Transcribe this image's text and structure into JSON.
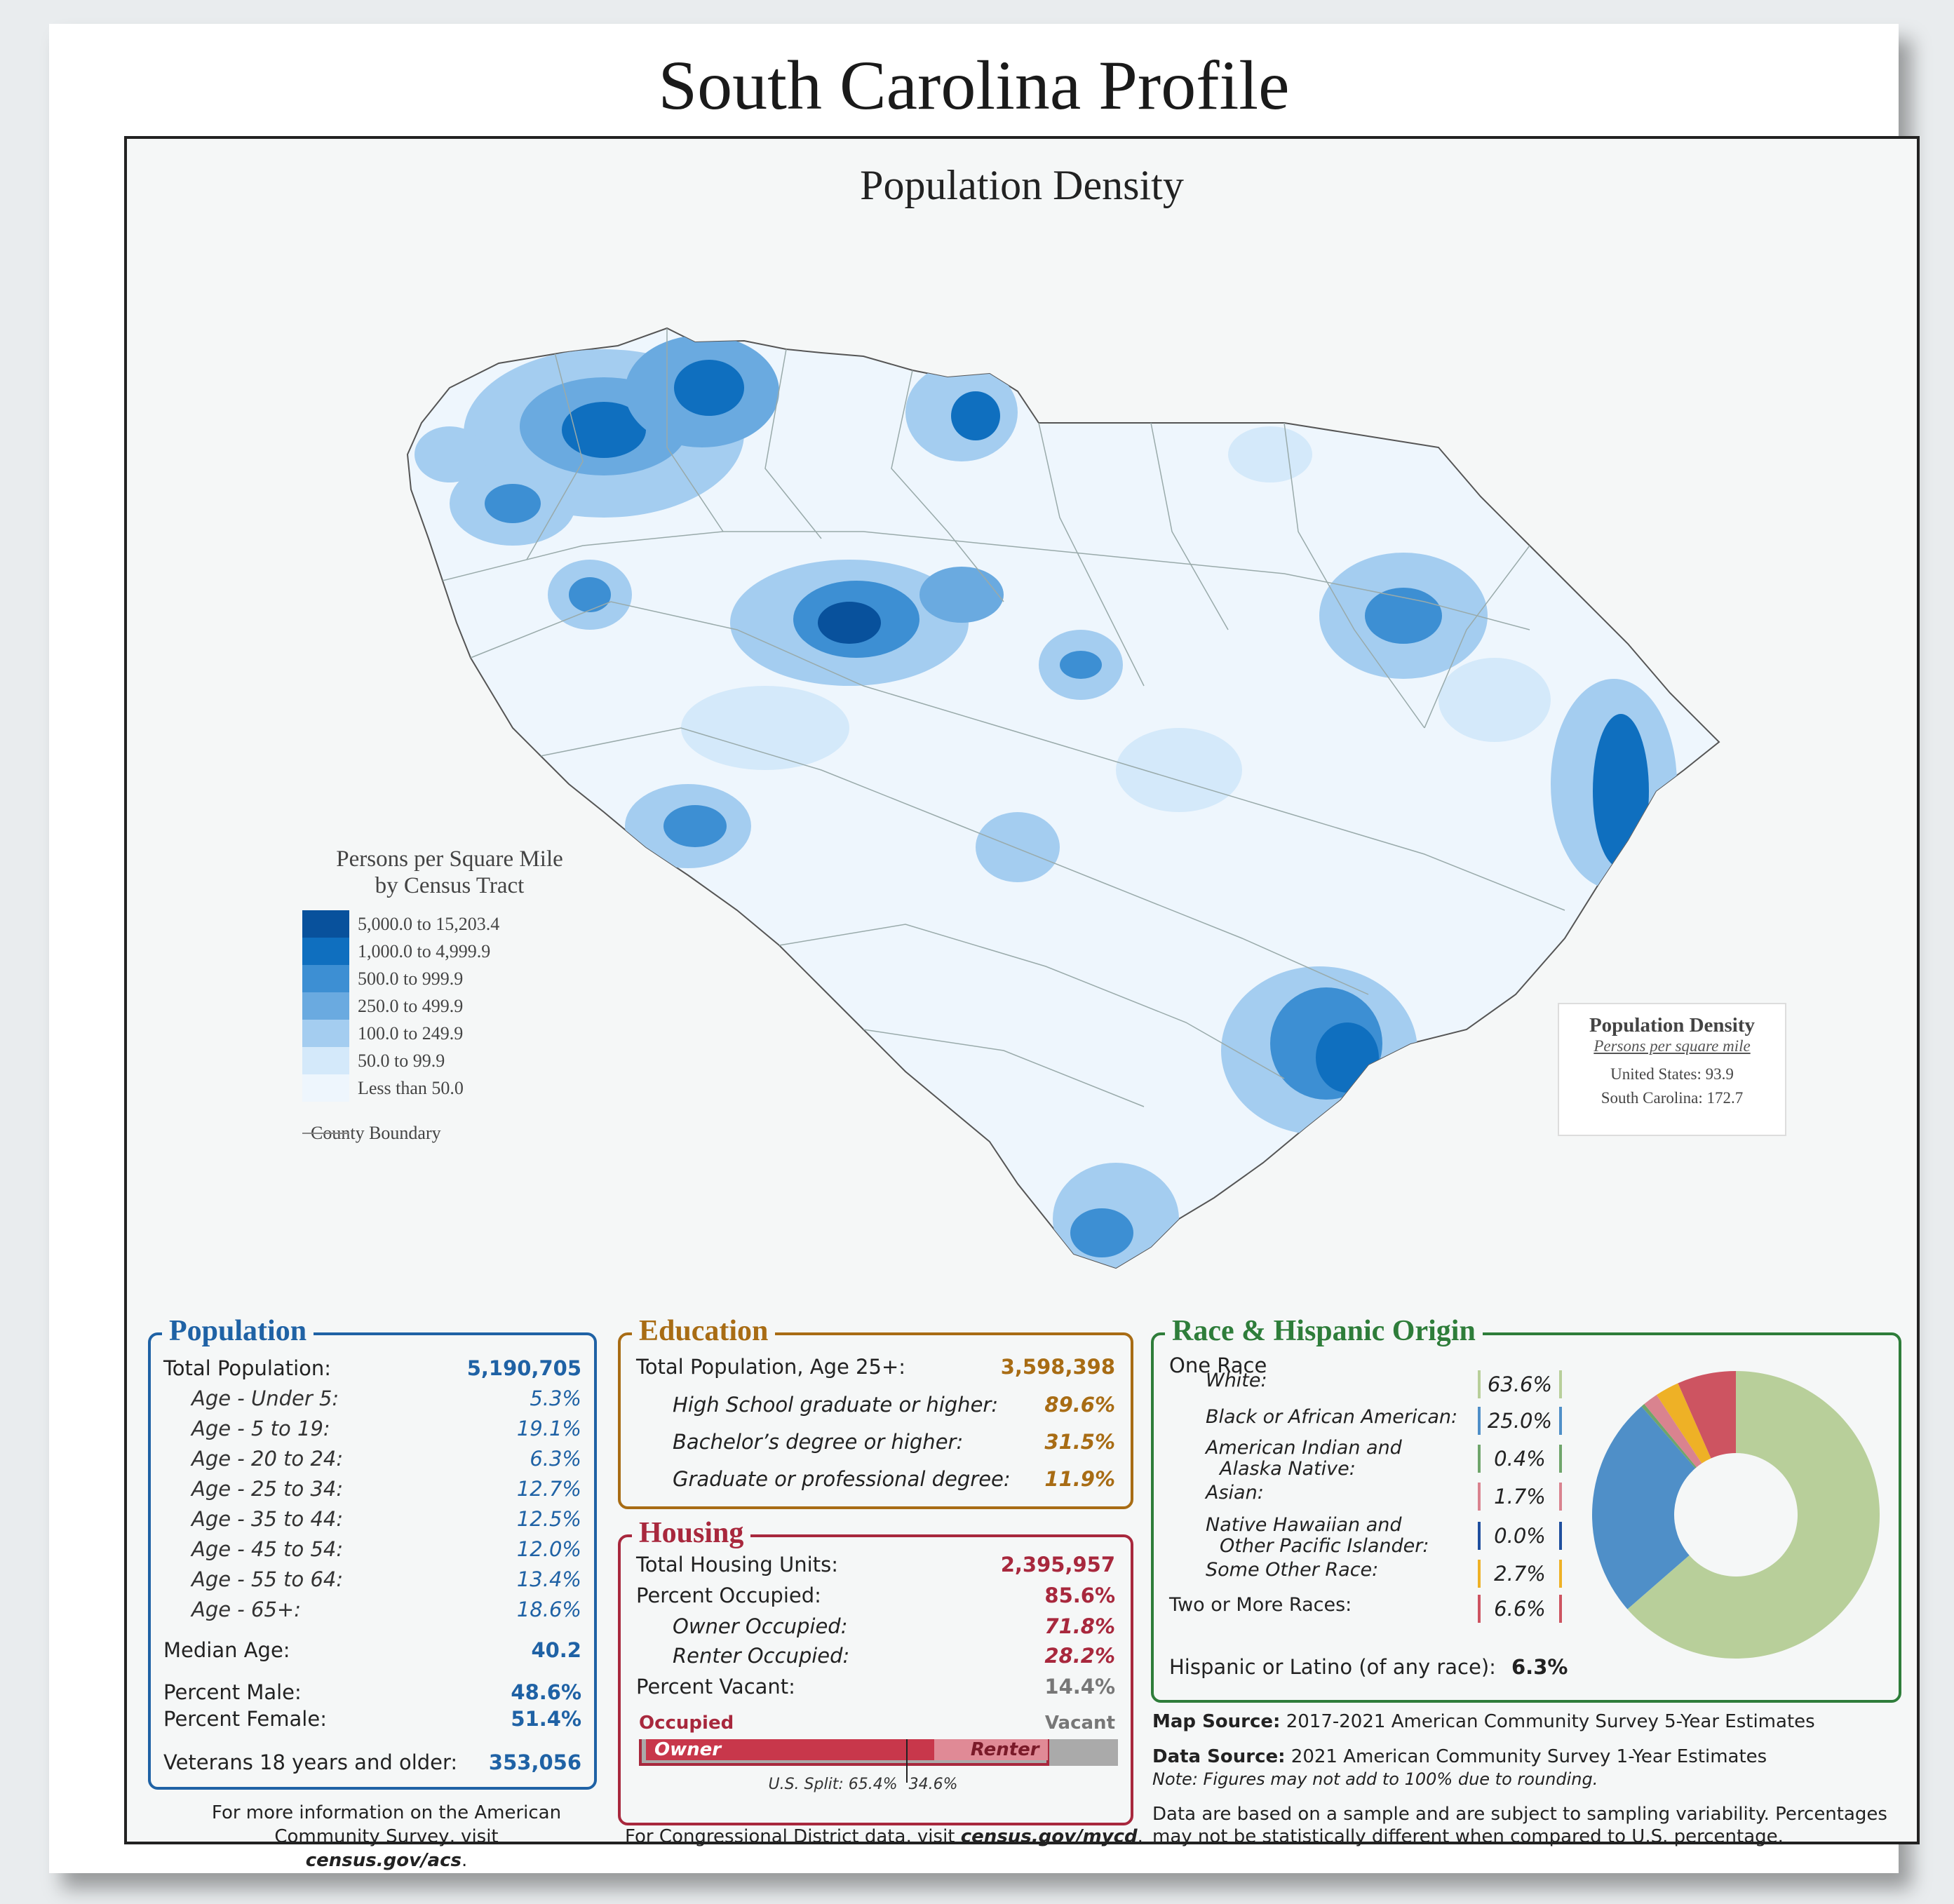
{
  "title": "South Carolina Profile",
  "map": {
    "subtitle": "Population Density",
    "legend": {
      "title_line1": "Persons per Square Mile",
      "title_line2": "by Census Tract",
      "classes": [
        {
          "label": "5,000.0 to 15,203.4",
          "color": "#08519c"
        },
        {
          "label": "1,000.0 to 4,999.9",
          "color": "#0f6fbf"
        },
        {
          "label": "500.0 to 999.9",
          "color": "#3d8fd3"
        },
        {
          "label": "250.0 to 499.9",
          "color": "#6aaae0"
        },
        {
          "label": "100.0 to 249.9",
          "color": "#a4cdf0"
        },
        {
          "label": "50.0 to 99.9",
          "color": "#d4e9fa"
        },
        {
          "label": "Less than 50.0",
          "color": "#eef6fd"
        }
      ],
      "county_boundary": "County Boundary"
    },
    "density_box": {
      "heading": "Population Density",
      "subheading": "Persons per square mile",
      "us": "United States:  93.9",
      "sc": "South Carolina:  172.7"
    }
  },
  "population": {
    "title": "Population",
    "total_label": "Total Population:",
    "total_value": "5,190,705",
    "ages": [
      {
        "label": "Age - Under 5:",
        "value": "5.3%"
      },
      {
        "label": "Age - 5 to 19:",
        "value": "19.1%"
      },
      {
        "label": "Age - 20 to 24:",
        "value": "6.3%"
      },
      {
        "label": "Age - 25 to 34:",
        "value": "12.7%"
      },
      {
        "label": "Age - 35 to 44:",
        "value": "12.5%"
      },
      {
        "label": "Age - 45 to 54:",
        "value": "12.0%"
      },
      {
        "label": "Age - 55 to 64:",
        "value": "13.4%"
      },
      {
        "label": "Age - 65+:",
        "value": "18.6%"
      }
    ],
    "median_label": "Median Age:",
    "median_value": "40.2",
    "male_label": "Percent Male:",
    "male_value": "48.6%",
    "female_label": "Percent Female:",
    "female_value": "51.4%",
    "veterans_label": "Veterans 18 years and older:",
    "veterans_value": "353,056"
  },
  "education": {
    "title": "Education",
    "total_label": "Total Population, Age 25+:",
    "total_value": "3,598,398",
    "items": [
      {
        "label": "High School  graduate or higher:",
        "value": "89.6%"
      },
      {
        "label": "Bachelor’s degree or higher:",
        "value": "31.5%"
      },
      {
        "label": "Graduate or professional degree:",
        "value": "11.9%"
      }
    ]
  },
  "housing": {
    "title": "Housing",
    "units_label": "Total Housing Units:",
    "units_value": "2,395,957",
    "occupied_label": "Percent Occupied:",
    "occupied_value": "85.6%",
    "owner_label": "Owner Occupied:",
    "owner_value": "71.8%",
    "renter_label": "Renter Occupied:",
    "renter_value": "28.2%",
    "vacant_label": "Percent Vacant:",
    "vacant_value": "14.4%",
    "bar": {
      "occupied_text": "Occupied",
      "vacant_text": "Vacant",
      "owner_text": "Owner",
      "renter_text": "Renter",
      "occupied_share": 0.856,
      "owner_share_of_occupied": 0.718,
      "us_owner_split": 0.654,
      "us_split_text": "U.S. Split: 65.4%",
      "us_split_text2": "34.6%"
    }
  },
  "race": {
    "title": "Race & Hispanic Origin",
    "one_race": "One Race",
    "items": [
      {
        "label": "White:",
        "value": "63.6%",
        "color": "#b8cf9a"
      },
      {
        "label": "Black or African American:",
        "value": "25.0%",
        "color": "#4f8fc8"
      },
      {
        "label": "American Indian and",
        "label2": "Alaska Native:",
        "value": "0.4%",
        "color": "#6fa56b"
      },
      {
        "label": "Asian:",
        "value": "1.7%",
        "color": "#d9838f"
      },
      {
        "label": "Native Hawaiian and",
        "label2": "Other Pacific Islander:",
        "value": "0.0%",
        "color": "#1f4f9e"
      },
      {
        "label": "Some Other Race:",
        "value": "2.7%",
        "color": "#eeb126"
      },
      {
        "label": "Two or More Races:",
        "value": "6.6%",
        "color": "#cd5461"
      }
    ],
    "hispanic_label": "Hispanic or Latino (of any race):",
    "hispanic_value": "6.3%"
  },
  "sources": {
    "map_source_label": "Map Source:",
    "map_source": " 2017-2021 American Community Survey 5-Year Estimates",
    "data_source_label": "Data Source:",
    "data_source": " 2021 American Community Survey 1-Year Estimates",
    "note": "Note: Figures may not add to 100% due to rounding.",
    "sampling1": "Data are based on a sample and are subject to sampling variability. Percentages",
    "sampling2": "may not be statistically different when compared to U.S. percentage."
  },
  "footer": {
    "acs1": "For more information on the American",
    "acs2": "Community Survey, visit ",
    "acs_link": "census.gov/acs",
    "acs_end": ".",
    "cd": "For Congressional District data, visit ",
    "cd_link": "census.gov/mycd",
    "cd_end": "."
  }
}
